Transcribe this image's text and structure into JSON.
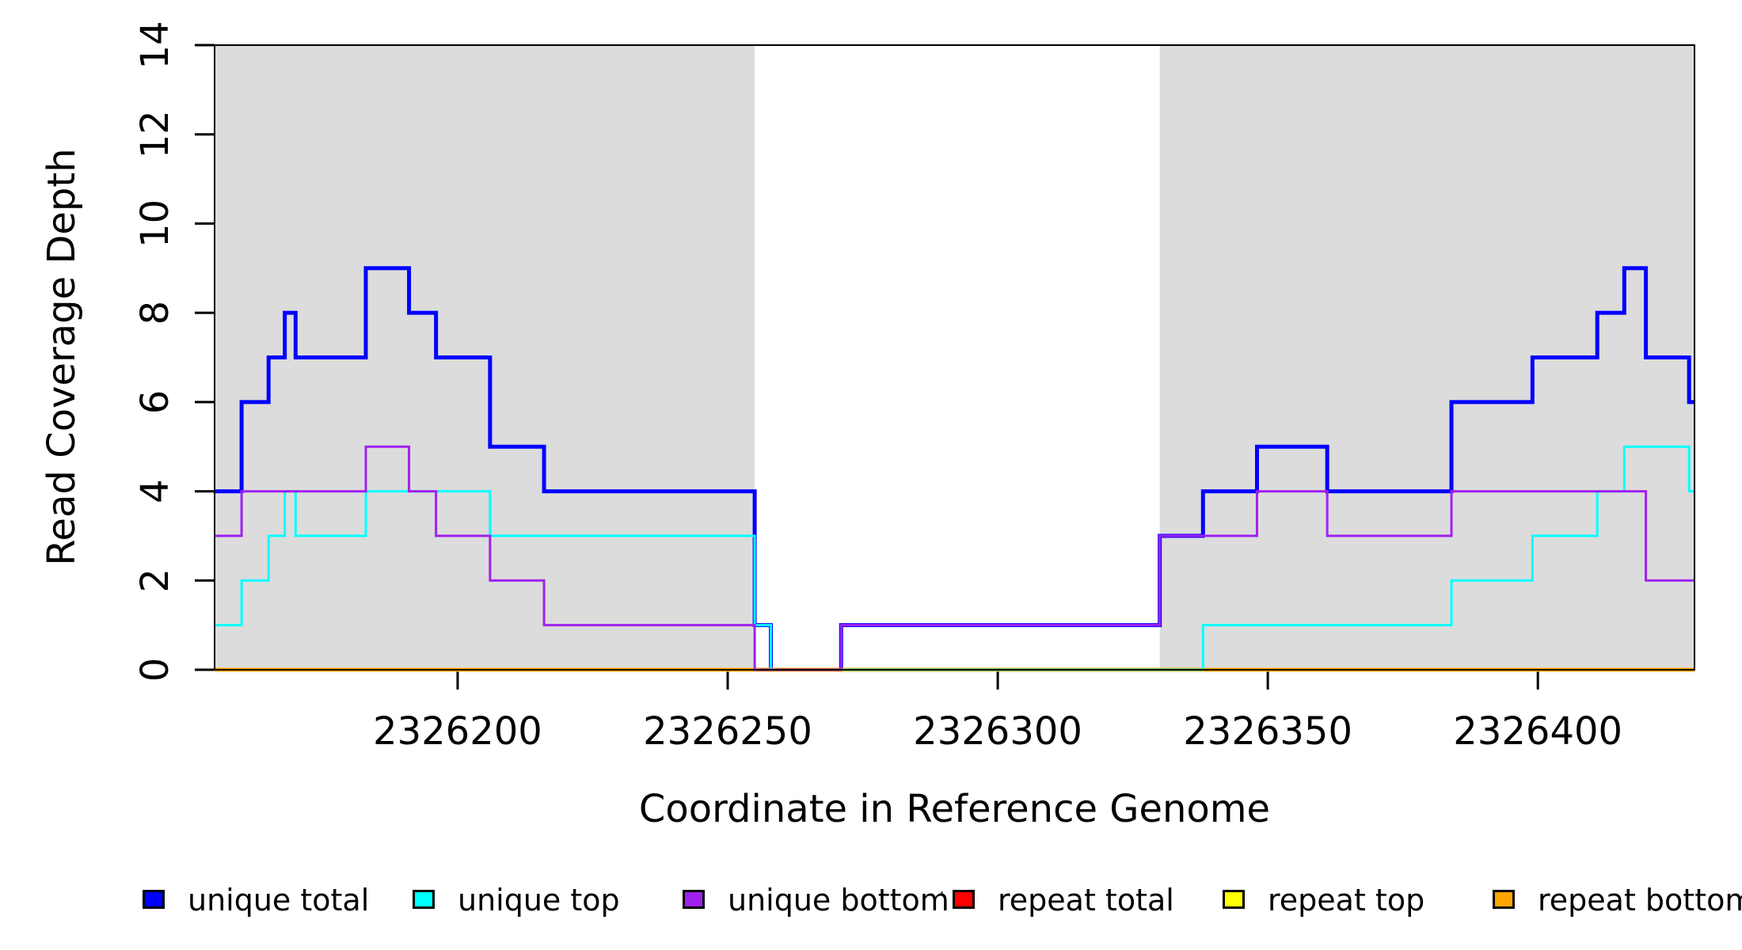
{
  "figure": {
    "background": "#FFFFFF"
  },
  "chart_data": {
    "type": "line",
    "subtype": "step-coverage",
    "title": "",
    "xlabel": "Coordinate in Reference Genome",
    "ylabel": "Read Coverage Depth",
    "xlim": [
      2326155,
      2326429
    ],
    "ylim": [
      0,
      14
    ],
    "grid": false,
    "x_ticks": [
      {
        "value": 2326200,
        "label": "2326200"
      },
      {
        "value": 2326250,
        "label": "2326250"
      },
      {
        "value": 2326300,
        "label": "2326300"
      },
      {
        "value": 2326350,
        "label": "2326350"
      },
      {
        "value": 2326400,
        "label": "2326400"
      }
    ],
    "y_ticks": [
      {
        "value": 0,
        "label": "0"
      },
      {
        "value": 2,
        "label": "2"
      },
      {
        "value": 4,
        "label": "4"
      },
      {
        "value": 6,
        "label": "6"
      },
      {
        "value": 8,
        "label": "8"
      },
      {
        "value": 10,
        "label": "10"
      },
      {
        "value": 12,
        "label": "12"
      },
      {
        "value": 14,
        "label": "14"
      }
    ],
    "shade_color": "#DCDCDC",
    "shaded_regions": [
      {
        "x0": 2326155,
        "x1": 2326255
      },
      {
        "x0": 2326330,
        "x1": 2326429
      }
    ],
    "series": [
      {
        "name": "unique total",
        "color": "#0000FF",
        "line_width": 5,
        "draw_order": 1,
        "breakpoints": [
          2326155,
          2326160,
          2326165,
          2326168,
          2326170,
          2326183,
          2326191,
          2326196,
          2326206,
          2326216,
          2326255,
          2326258,
          2326271,
          2326330,
          2326338,
          2326348,
          2326361,
          2326384,
          2326399,
          2326411,
          2326416,
          2326420,
          2326428
        ],
        "values": [
          4,
          6,
          7,
          8,
          7,
          9,
          8,
          7,
          5,
          4,
          1,
          0,
          1,
          3,
          4,
          5,
          4,
          6,
          7,
          8,
          9,
          7,
          6
        ]
      },
      {
        "name": "unique top",
        "color": "#00FFFF",
        "line_width": 3,
        "draw_order": 5,
        "breakpoints": [
          2326155,
          2326160,
          2326165,
          2326168,
          2326170,
          2326183,
          2326206,
          2326255,
          2326258,
          2326338,
          2326384,
          2326399,
          2326411,
          2326416,
          2326428
        ],
        "values": [
          1,
          2,
          3,
          4,
          3,
          4,
          3,
          1,
          0,
          1,
          2,
          3,
          4,
          5,
          4
        ]
      },
      {
        "name": "unique bottom",
        "color": "#A020F0",
        "line_width": 3,
        "draw_order": 6,
        "breakpoints": [
          2326155,
          2326160,
          2326183,
          2326191,
          2326196,
          2326206,
          2326216,
          2326255,
          2326271,
          2326330,
          2326348,
          2326361,
          2326384,
          2326420
        ],
        "values": [
          3,
          4,
          5,
          4,
          3,
          2,
          1,
          0,
          1,
          3,
          4,
          3,
          4,
          2
        ]
      },
      {
        "name": "repeat total",
        "color": "#FF0000",
        "line_width": 3,
        "draw_order": 2,
        "breakpoints": [
          2326155
        ],
        "values": [
          0
        ]
      },
      {
        "name": "repeat top",
        "color": "#FFFF00",
        "line_width": 3,
        "draw_order": 3,
        "breakpoints": [
          2326155
        ],
        "values": [
          0
        ]
      },
      {
        "name": "repeat bottom",
        "color": "#FFA500",
        "line_width": 5,
        "draw_order": 4,
        "breakpoints": [
          2326155
        ],
        "values": [
          0
        ]
      }
    ],
    "legend": {
      "position": "bottom",
      "entries": [
        {
          "label": "unique total",
          "color": "#0000FF"
        },
        {
          "label": "unique top",
          "color": "#00FFFF"
        },
        {
          "label": "unique bottom",
          "color": "#A020F0"
        },
        {
          "label": "repeat total",
          "color": "#FF0000"
        },
        {
          "label": "repeat top",
          "color": "#FFFF00"
        },
        {
          "label": "repeat bottom",
          "color": "#FFA500"
        }
      ]
    },
    "axis_color": "#000000"
  }
}
